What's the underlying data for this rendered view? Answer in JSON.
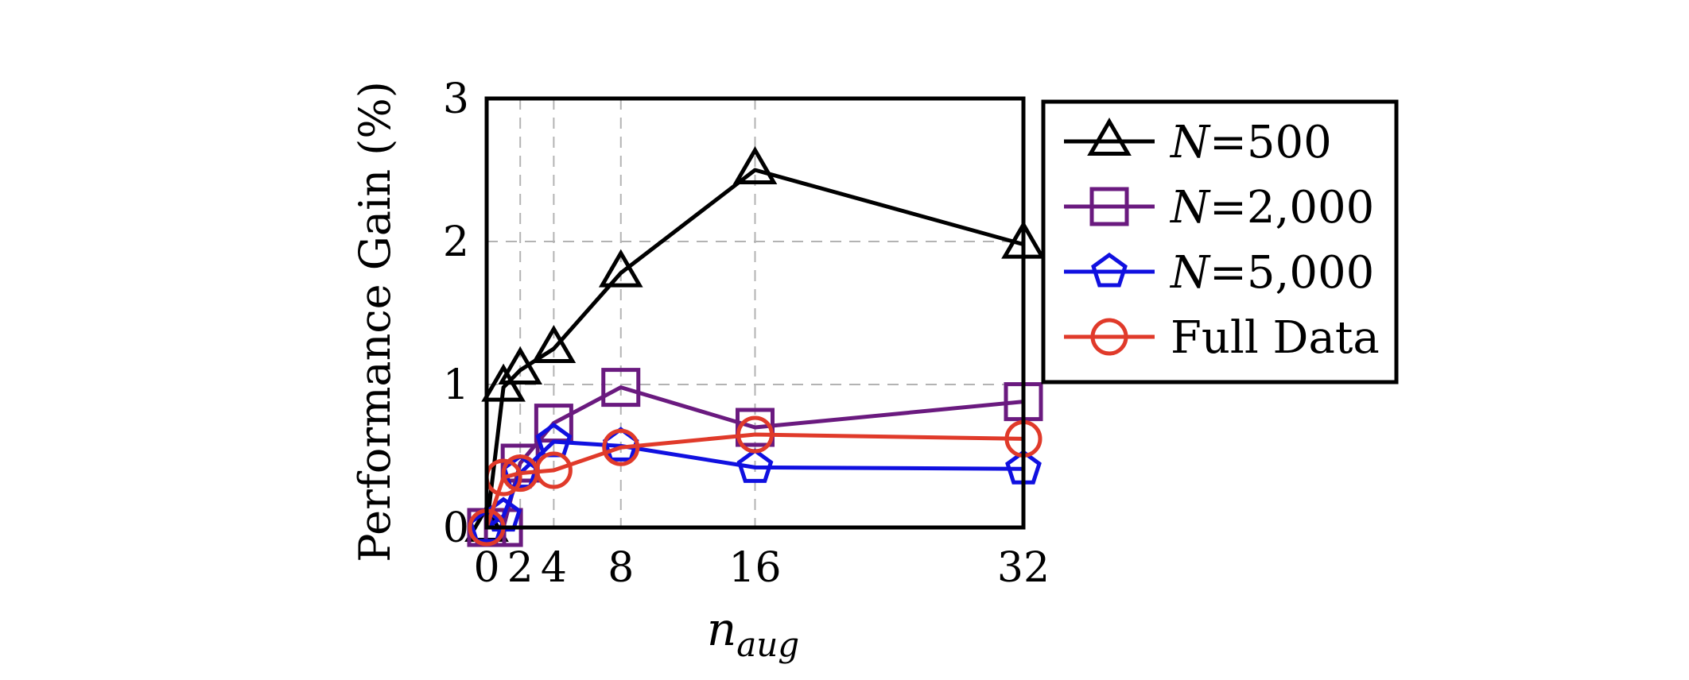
{
  "chart_data": {
    "type": "line",
    "title": "",
    "xlabel": "n",
    "xlabel_sub": "aug",
    "ylabel": "Performance Gain (%)",
    "xlim": [
      0,
      32
    ],
    "ylim": [
      0,
      3
    ],
    "xticks": [
      0,
      2,
      4,
      8,
      16,
      32
    ],
    "xtick_labels": [
      "0",
      "2",
      "4",
      "8",
      "16",
      "32"
    ],
    "yticks": [
      0,
      1,
      2,
      3
    ],
    "ytick_labels": [
      "0",
      "1",
      "2",
      "3"
    ],
    "grid": true,
    "legend_position": "outside-right-top",
    "series": [
      {
        "label_var": "N",
        "label_rest": "=500",
        "marker": "triangle",
        "color": "#000000",
        "x": [
          0,
          1,
          2,
          4,
          8,
          16,
          32
        ],
        "y": [
          0.0,
          0.98,
          1.1,
          1.25,
          1.78,
          2.5,
          1.98
        ]
      },
      {
        "label_var": "N",
        "label_rest": "=2,000",
        "marker": "square",
        "color": "#6a1a7f",
        "x": [
          0,
          1,
          2,
          4,
          8,
          16,
          32
        ],
        "y": [
          0.0,
          0.0,
          0.45,
          0.73,
          0.98,
          0.7,
          0.88
        ]
      },
      {
        "label_var": "N",
        "label_rest": "=5,000",
        "marker": "pentagon",
        "color": "#1010e0",
        "x": [
          0,
          1,
          2,
          4,
          8,
          16,
          32
        ],
        "y": [
          0.0,
          0.08,
          0.38,
          0.6,
          0.57,
          0.42,
          0.41
        ]
      },
      {
        "label_var": "",
        "label_rest": "Full Data",
        "marker": "circle",
        "color": "#e03a2a",
        "x": [
          0,
          1,
          2,
          4,
          8,
          16,
          32
        ],
        "y": [
          0.0,
          0.35,
          0.38,
          0.4,
          0.56,
          0.65,
          0.62
        ]
      }
    ]
  }
}
